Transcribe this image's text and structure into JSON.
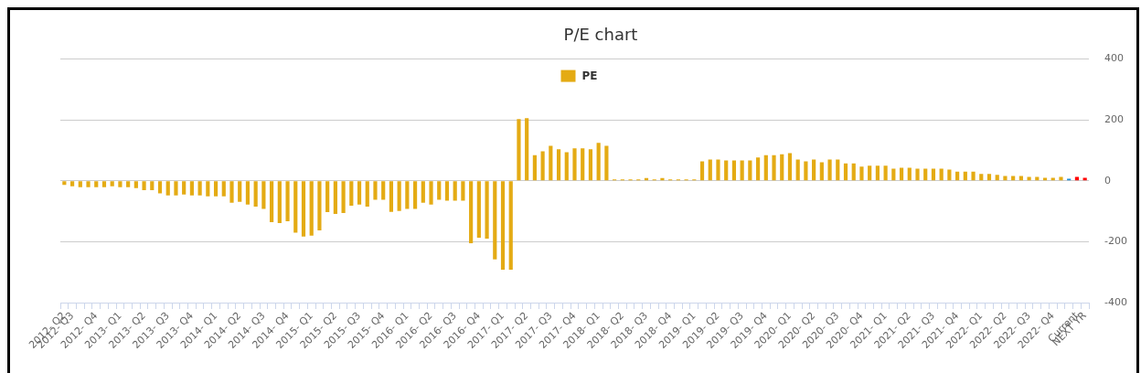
{
  "chart_data": {
    "type": "bar",
    "title": "P/E chart",
    "categories": [
      "2012- Q2",
      "2012- Q3",
      null,
      null,
      "2012- Q4",
      null,
      null,
      "2013- Q1",
      null,
      null,
      "2013- Q2",
      null,
      null,
      "2013- Q3",
      null,
      null,
      "2013- Q4",
      null,
      null,
      "2014- Q1",
      null,
      null,
      "2014- Q2",
      null,
      null,
      "2014- Q3",
      null,
      null,
      "2014- Q4",
      null,
      null,
      "2015- Q1",
      null,
      null,
      "2015- Q2",
      null,
      null,
      "2015- Q3",
      null,
      null,
      "2015- Q4",
      null,
      null,
      "2016- Q1",
      null,
      null,
      "2016- Q2",
      null,
      null,
      "2016- Q3",
      null,
      null,
      "2016- Q4",
      null,
      null,
      "2017- Q1",
      null,
      null,
      "2017- Q2",
      null,
      null,
      "2017- Q3",
      null,
      null,
      "2017- Q4",
      null,
      null,
      "2018- Q1",
      null,
      null,
      "2018- Q2",
      null,
      null,
      "2018- Q3",
      null,
      null,
      "2018- Q4",
      null,
      null,
      "2019- Q1",
      null,
      null,
      "2019- Q2",
      null,
      null,
      "2019- Q3",
      null,
      null,
      "2019- Q4",
      null,
      null,
      "2020- Q1",
      null,
      null,
      "2020- Q2",
      null,
      null,
      "2020- Q3",
      null,
      null,
      "2020- Q4",
      null,
      null,
      "2021- Q1",
      null,
      null,
      "2021- Q2",
      null,
      null,
      "2021- Q3",
      null,
      null,
      "2021- Q4",
      null,
      null,
      "2022- Q1",
      null,
      null,
      "2022- Q2",
      null,
      null,
      "2022- Q3",
      null,
      null,
      "2022- Q4",
      null,
      null,
      "Current",
      "NEXT YR"
    ],
    "series": [
      {
        "name": "PE",
        "color": "#e4ab14",
        "colors": [
          "#e4ab14",
          "#e4ab14",
          "#e4ab14",
          "#e4ab14",
          "#e4ab14",
          "#e4ab14",
          "#e4ab14",
          "#e4ab14",
          "#e4ab14",
          "#e4ab14",
          "#e4ab14",
          "#e4ab14",
          "#e4ab14",
          "#e4ab14",
          "#e4ab14",
          "#e4ab14",
          "#e4ab14",
          "#e4ab14",
          "#e4ab14",
          "#e4ab14",
          "#e4ab14",
          "#e4ab14",
          "#e4ab14",
          "#e4ab14",
          "#e4ab14",
          "#e4ab14",
          "#e4ab14",
          "#e4ab14",
          "#e4ab14",
          "#e4ab14",
          "#e4ab14",
          "#e4ab14",
          "#e4ab14",
          "#e4ab14",
          "#e4ab14",
          "#e4ab14",
          "#e4ab14",
          "#e4ab14",
          "#e4ab14",
          "#e4ab14",
          "#e4ab14",
          "#e4ab14",
          "#e4ab14",
          "#e4ab14",
          "#e4ab14",
          "#e4ab14",
          "#e4ab14",
          "#e4ab14",
          "#e4ab14",
          "#e4ab14",
          "#e4ab14",
          "#e4ab14",
          "#e4ab14",
          "#e4ab14",
          "#e4ab14",
          "#e4ab14",
          "#e4ab14",
          "#e4ab14",
          "#e4ab14",
          "#e4ab14",
          "#e4ab14",
          "#e4ab14",
          "#e4ab14",
          "#e4ab14",
          "#e4ab14",
          "#e4ab14",
          "#e4ab14",
          "#e4ab14",
          "#e4ab14",
          "#e4ab14",
          "#e4ab14",
          "#e4ab14",
          "#e4ab14",
          "#e4ab14",
          "#e4ab14",
          "#e4ab14",
          "#e4ab14",
          "#e4ab14",
          "#e4ab14",
          "#e4ab14",
          "#e4ab14",
          "#e4ab14",
          "#e4ab14",
          "#e4ab14",
          "#e4ab14",
          "#e4ab14",
          "#e4ab14",
          "#e4ab14",
          "#e4ab14",
          "#e4ab14",
          "#e4ab14",
          "#e4ab14",
          "#e4ab14",
          "#e4ab14",
          "#e4ab14",
          "#e4ab14",
          "#e4ab14",
          "#e4ab14",
          "#e4ab14",
          "#e4ab14",
          "#e4ab14",
          "#e4ab14",
          "#e4ab14",
          "#e4ab14",
          "#e4ab14",
          "#e4ab14",
          "#e4ab14",
          "#e4ab14",
          "#e4ab14",
          "#e4ab14",
          "#e4ab14",
          "#e4ab14",
          "#e4ab14",
          "#e4ab14",
          "#e4ab14",
          "#e4ab14",
          "#e4ab14",
          "#e4ab14",
          "#e4ab14",
          "#e4ab14",
          "#e4ab14",
          "#e4ab14",
          "#e4ab14",
          "#e4ab14",
          "#e4ab14",
          "#e4ab14",
          "#1f8fd8",
          "#ff0000",
          "#ff0000"
        ],
        "values": [
          -13,
          -18,
          -21,
          -21,
          -21,
          -21,
          -18,
          -21,
          -21,
          -24,
          -31,
          -31,
          -41,
          -48,
          -48,
          -45,
          -48,
          -48,
          -51,
          -51,
          -51,
          -72,
          -69,
          -78,
          -85,
          -92,
          -136,
          -139,
          -133,
          -170,
          -183,
          -180,
          -163,
          -103,
          -109,
          -106,
          -82,
          -78,
          -85,
          -62,
          -62,
          -102,
          -99,
          -92,
          -92,
          -72,
          -78,
          -62,
          -65,
          -65,
          -65,
          -205,
          -187,
          -190,
          -258,
          -292,
          -292,
          203,
          206,
          84,
          97,
          115,
          104,
          94,
          107,
          107,
          104,
          125,
          115,
          5,
          5,
          5,
          5,
          9,
          5,
          9,
          5,
          5,
          5,
          5,
          64,
          70,
          70,
          67,
          67,
          67,
          67,
          77,
          84,
          84,
          87,
          91,
          70,
          64,
          70,
          61,
          70,
          70,
          57,
          57,
          47,
          50,
          50,
          50,
          40,
          43,
          43,
          40,
          40,
          40,
          40,
          37,
          30,
          30,
          30,
          23,
          23,
          20,
          16,
          16,
          16,
          13,
          13,
          10,
          10,
          13,
          7,
          13,
          10
        ]
      }
    ],
    "ylim": [
      -400,
      400
    ],
    "yticks": [
      -400,
      -200,
      0,
      200,
      400
    ],
    "grid": "y",
    "legend": "top"
  }
}
